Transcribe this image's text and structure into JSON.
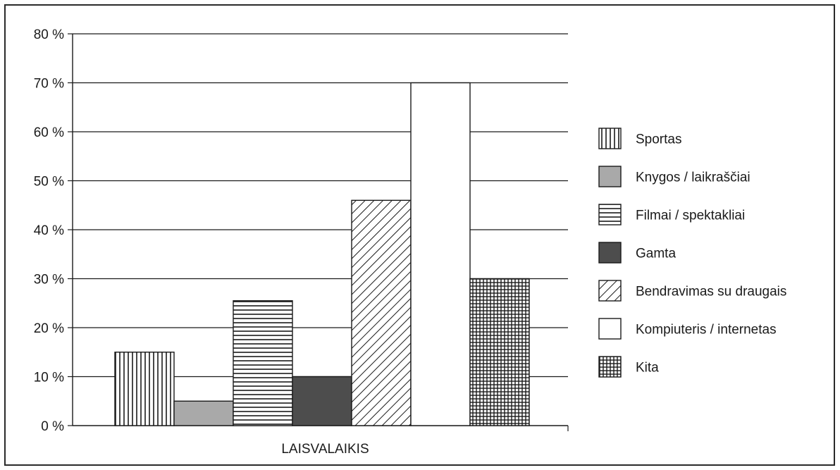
{
  "chart_data": {
    "type": "bar",
    "categories": [
      "LAISVALAIKIS"
    ],
    "series": [
      {
        "name": "Sportas",
        "values": [
          15
        ],
        "pattern": "vertical-lines",
        "color": "#ffffff"
      },
      {
        "name": "Knygos / laikraščiai",
        "values": [
          5
        ],
        "pattern": "solid",
        "color": "#a9a9a9"
      },
      {
        "name": "Filmai / spektakliai",
        "values": [
          25.5
        ],
        "pattern": "horizontal-lines",
        "color": "#ffffff"
      },
      {
        "name": "Gamta",
        "values": [
          10
        ],
        "pattern": "solid",
        "color": "#4d4d4d"
      },
      {
        "name": "Bendravimas su draugais",
        "values": [
          46
        ],
        "pattern": "diagonal-lines",
        "color": "#ffffff"
      },
      {
        "name": "Kompiuteris / internetas",
        "values": [
          70
        ],
        "pattern": "none",
        "color": "#ffffff"
      },
      {
        "name": "Kita",
        "values": [
          30
        ],
        "pattern": "grid",
        "color": "#ffffff"
      }
    ],
    "ylim": [
      0,
      80
    ],
    "yticks": [
      "0 %",
      "10 %",
      "20 %",
      "30 %",
      "40 %",
      "50 %",
      "60 %",
      "70 %",
      "80 %"
    ],
    "ytick_values": [
      0,
      10,
      20,
      30,
      40,
      50,
      60,
      70,
      80
    ],
    "grid": true,
    "legend": "right"
  }
}
